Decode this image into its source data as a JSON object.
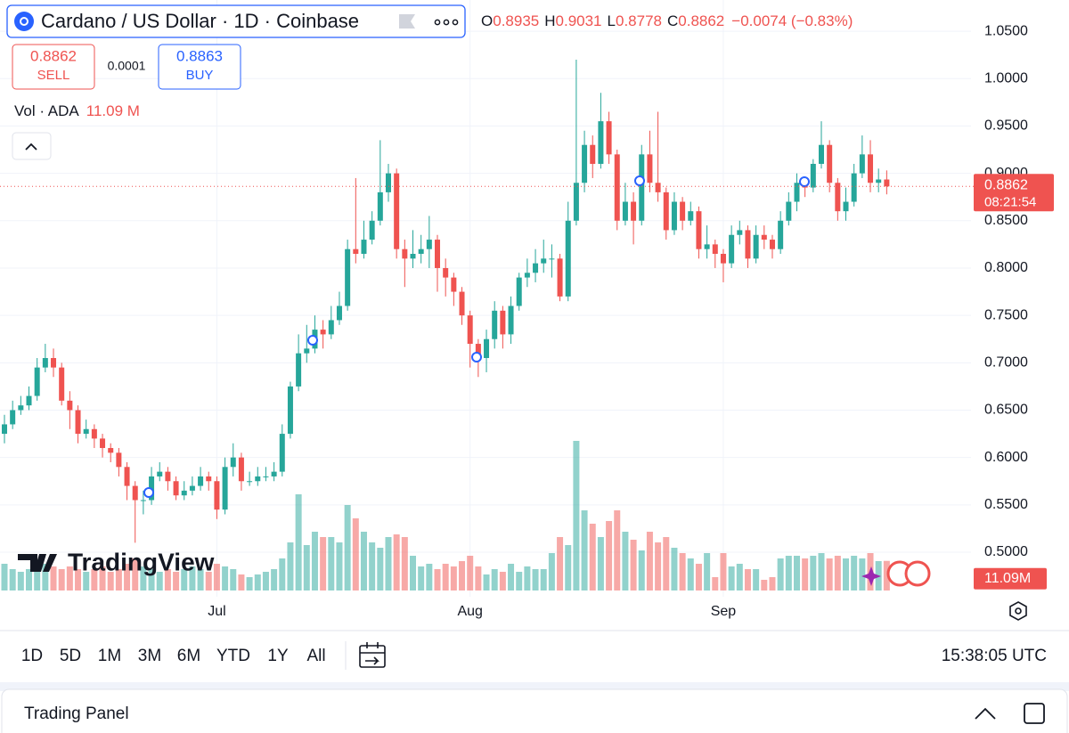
{
  "chart_data": {
    "type": "candlestick",
    "categories": [
      null,
      null,
      null,
      null,
      null,
      null,
      null,
      null,
      null,
      null,
      null,
      null,
      null,
      null,
      null,
      null,
      null,
      null,
      null,
      null,
      null,
      null,
      null,
      null,
      null,
      null,
      "Jul",
      null,
      null,
      null,
      null,
      null,
      null,
      null,
      null,
      null,
      null,
      null,
      null,
      null,
      null,
      null,
      null,
      null,
      null,
      null,
      null,
      null,
      null,
      null,
      null,
      null,
      null,
      null,
      null,
      null,
      null,
      "Aug",
      null,
      null,
      null,
      null,
      null,
      null,
      null,
      null,
      null,
      null,
      null,
      null,
      null,
      null,
      null,
      null,
      null,
      null,
      null,
      null,
      null,
      null,
      null,
      null,
      null,
      null,
      null,
      null,
      null,
      null,
      "Sep",
      null,
      null,
      null,
      null,
      null,
      null,
      null,
      null,
      null,
      null,
      null,
      null,
      null,
      null,
      null,
      null,
      null,
      null,
      null,
      null
    ],
    "open": [
      0.625,
      0.635,
      0.65,
      0.655,
      0.665,
      0.695,
      0.705,
      0.695,
      0.66,
      0.65,
      0.625,
      0.63,
      0.62,
      0.61,
      0.605,
      0.59,
      0.57,
      0.555,
      0.555,
      0.58,
      0.585,
      0.575,
      0.56,
      0.565,
      0.57,
      0.58,
      0.575,
      0.545,
      0.59,
      0.6,
      0.575,
      0.575,
      0.58,
      0.58,
      0.585,
      0.625,
      0.675,
      0.71,
      0.715,
      0.735,
      0.73,
      0.745,
      0.76,
      0.82,
      0.815,
      0.83,
      0.85,
      0.88,
      0.9,
      0.82,
      0.81,
      0.815,
      0.82,
      0.83,
      0.8,
      0.79,
      0.775,
      0.75,
      0.72,
      0.705,
      0.725,
      0.755,
      0.73,
      0.76,
      0.79,
      0.795,
      0.805,
      0.81,
      0.81,
      0.77,
      0.85,
      0.89,
      0.93,
      0.91,
      0.955,
      0.92,
      0.85,
      0.87,
      0.85,
      0.92,
      0.89,
      0.88,
      0.84,
      0.87,
      0.85,
      0.86,
      0.82,
      0.825,
      0.815,
      0.805,
      0.835,
      0.84,
      0.81,
      0.835,
      0.83,
      0.82,
      0.85,
      0.87,
      0.89,
      0.885,
      0.91,
      0.93,
      0.89,
      0.86,
      0.87,
      0.9,
      0.92,
      0.89,
      0.8935
    ],
    "high": [
      0.645,
      0.66,
      0.665,
      0.675,
      0.705,
      0.72,
      0.715,
      0.7,
      0.67,
      0.655,
      0.64,
      0.635,
      0.625,
      0.615,
      0.61,
      0.595,
      0.575,
      0.565,
      0.59,
      0.595,
      0.59,
      0.58,
      0.575,
      0.58,
      0.59,
      0.585,
      0.58,
      0.6,
      0.615,
      0.605,
      0.585,
      0.59,
      0.59,
      0.595,
      0.635,
      0.68,
      0.73,
      0.74,
      0.75,
      0.745,
      0.76,
      0.775,
      0.83,
      0.895,
      0.85,
      0.86,
      0.935,
      0.91,
      0.905,
      0.83,
      0.84,
      0.835,
      0.855,
      0.835,
      0.81,
      0.795,
      0.78,
      0.755,
      0.725,
      0.735,
      0.765,
      0.76,
      0.77,
      0.795,
      0.81,
      0.82,
      0.83,
      0.825,
      0.815,
      0.87,
      1.02,
      0.945,
      0.94,
      0.985,
      0.965,
      0.925,
      0.89,
      0.88,
      0.93,
      0.945,
      0.965,
      0.885,
      0.88,
      0.875,
      0.87,
      0.865,
      0.845,
      0.83,
      0.82,
      0.845,
      0.85,
      0.845,
      0.845,
      0.845,
      0.835,
      0.86,
      0.88,
      0.9,
      0.895,
      0.915,
      0.955,
      0.935,
      0.895,
      0.885,
      0.91,
      0.94,
      0.935,
      0.905,
      0.9031
    ],
    "low": [
      0.615,
      0.63,
      0.645,
      0.65,
      0.66,
      0.69,
      0.685,
      0.655,
      0.63,
      0.615,
      0.62,
      0.61,
      0.6,
      0.595,
      0.58,
      0.555,
      0.51,
      0.54,
      0.55,
      0.575,
      0.565,
      0.555,
      0.555,
      0.56,
      0.565,
      0.565,
      0.535,
      0.54,
      0.58,
      0.565,
      0.57,
      0.57,
      0.575,
      0.575,
      0.58,
      0.62,
      0.67,
      0.7,
      0.71,
      0.715,
      0.725,
      0.74,
      0.755,
      0.805,
      0.81,
      0.825,
      0.845,
      0.87,
      0.81,
      0.78,
      0.8,
      0.805,
      0.8,
      0.775,
      0.77,
      0.76,
      0.74,
      0.695,
      0.685,
      0.69,
      0.715,
      0.715,
      0.72,
      0.755,
      0.78,
      0.785,
      0.795,
      0.79,
      0.765,
      0.765,
      0.845,
      0.88,
      0.895,
      0.905,
      0.91,
      0.84,
      0.845,
      0.825,
      0.845,
      0.88,
      0.87,
      0.83,
      0.835,
      0.84,
      0.845,
      0.81,
      0.81,
      0.8,
      0.785,
      0.8,
      0.825,
      0.8,
      0.805,
      0.82,
      0.81,
      0.815,
      0.845,
      0.86,
      0.875,
      0.88,
      0.905,
      0.88,
      0.85,
      0.85,
      0.865,
      0.895,
      0.88,
      0.88,
      0.8778
    ],
    "close": [
      0.635,
      0.65,
      0.655,
      0.665,
      0.695,
      0.705,
      0.695,
      0.66,
      0.65,
      0.625,
      0.63,
      0.62,
      0.61,
      0.605,
      0.59,
      0.57,
      0.555,
      0.555,
      0.58,
      0.585,
      0.575,
      0.56,
      0.565,
      0.57,
      0.58,
      0.575,
      0.545,
      0.59,
      0.6,
      0.575,
      0.575,
      0.58,
      0.58,
      0.585,
      0.625,
      0.675,
      0.71,
      0.715,
      0.735,
      0.73,
      0.745,
      0.76,
      0.82,
      0.815,
      0.83,
      0.85,
      0.88,
      0.9,
      0.82,
      0.81,
      0.815,
      0.82,
      0.83,
      0.8,
      0.79,
      0.775,
      0.75,
      0.72,
      0.705,
      0.725,
      0.755,
      0.73,
      0.76,
      0.79,
      0.795,
      0.805,
      0.81,
      0.81,
      0.77,
      0.85,
      0.89,
      0.93,
      0.91,
      0.955,
      0.92,
      0.85,
      0.87,
      0.85,
      0.92,
      0.89,
      0.88,
      0.84,
      0.87,
      0.85,
      0.86,
      0.82,
      0.825,
      0.815,
      0.805,
      0.835,
      0.84,
      0.81,
      0.835,
      0.83,
      0.82,
      0.85,
      0.87,
      0.89,
      0.885,
      0.91,
      0.93,
      0.89,
      0.86,
      0.87,
      0.9,
      0.92,
      0.89,
      0.8935,
      0.8862
    ],
    "volume": [
      10,
      8,
      7,
      8,
      9,
      10,
      9,
      8,
      9,
      8,
      7,
      8,
      9,
      7,
      8,
      10,
      12,
      9,
      8,
      7,
      8,
      7,
      8,
      9,
      8,
      7,
      10,
      9,
      8,
      6,
      5,
      6,
      7,
      8,
      12,
      18,
      36,
      17,
      22,
      20,
      20,
      18,
      32,
      27,
      22,
      18,
      16,
      20,
      21,
      20,
      13,
      9,
      10,
      8,
      10,
      9,
      11,
      13,
      9,
      6,
      8,
      7,
      10,
      7,
      9,
      8,
      8,
      14,
      20,
      17,
      56,
      30,
      25,
      20,
      26,
      30,
      22,
      19,
      15,
      22,
      18,
      20,
      16,
      14,
      12,
      10,
      14,
      5,
      14,
      9,
      10,
      8,
      8,
      4,
      5,
      12,
      13,
      13,
      12,
      13,
      14,
      12,
      13,
      12,
      13,
      12,
      14,
      11,
      11.09
    ],
    "volume_label": "11.09M",
    "up_color": "#26a69a",
    "down_color": "#ef5350",
    "ylim": [
      0.453,
      1.083
    ],
    "yticks": [
      {
        "value": 0.5,
        "label": "0.5000"
      },
      {
        "value": 0.55,
        "label": "0.5500"
      },
      {
        "value": 0.6,
        "label": "0.6000"
      },
      {
        "value": 0.65,
        "label": "0.6500"
      },
      {
        "value": 0.7,
        "label": "0.7000"
      },
      {
        "value": 0.75,
        "label": "0.7500"
      },
      {
        "value": 0.8,
        "label": "0.8000"
      },
      {
        "value": 0.85,
        "label": "0.8500"
      },
      {
        "value": 0.9,
        "label": "0.9000"
      },
      {
        "value": 0.95,
        "label": "0.9500"
      },
      {
        "value": 1.0,
        "label": "1.0000"
      },
      {
        "value": 1.05,
        "label": "1.0500"
      }
    ],
    "volume_lim": [
      0,
      60
    ],
    "grid": true
  },
  "ui": {
    "symbol": "Cardano / US Dollar · 1D · Coinbase",
    "ohlc_letters": [
      "O",
      "H",
      "L",
      "C"
    ],
    "change": "−0.0074 (−0.83%)",
    "sell_price": "0.8862",
    "sell_label": "SELL",
    "spread": "0.0001",
    "buy_price": "0.8863",
    "buy_label": "BUY",
    "vol_legend": "Vol · ADA",
    "vol_legend_value": "11.09 M",
    "countdown": "08:21:54",
    "watermark": "TradingView",
    "ranges": [
      "1D",
      "5D",
      "1M",
      "3M",
      "6M",
      "YTD",
      "1Y",
      "All"
    ],
    "clock": "15:38:05 UTC",
    "panel": "Trading Panel"
  }
}
